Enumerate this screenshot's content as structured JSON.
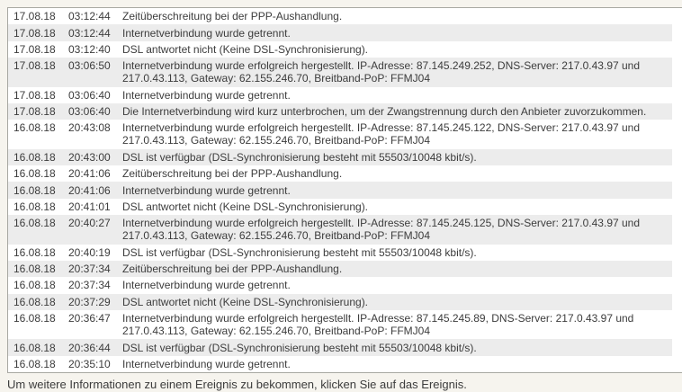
{
  "page": {
    "footer_note": "Um weitere Informationen zu einem Ereignis zu bekommen, klicken Sie auf das Ereignis."
  },
  "theme": {
    "page_background": "#f6f4ee",
    "stripe_color": "#ececec",
    "border_color": "#a8a8a2",
    "text_color": "#3c3c3c",
    "row_background": "#ffffff"
  },
  "log": {
    "rows": [
      {
        "date": "17.08.18",
        "time": "03:12:44",
        "lines": [
          "Zeitüberschreitung bei der PPP-Aushandlung."
        ]
      },
      {
        "date": "17.08.18",
        "time": "03:12:44",
        "lines": [
          "Internetverbindung wurde getrennt."
        ]
      },
      {
        "date": "17.08.18",
        "time": "03:12:40",
        "lines": [
          "DSL antwortet nicht (Keine DSL-Synchronisierung)."
        ]
      },
      {
        "date": "17.08.18",
        "time": "03:06:50",
        "lines": [
          "Internetverbindung wurde erfolgreich hergestellt. IP-Adresse: 87.145.249.252, DNS-Server: 217.0.43.97 und",
          "217.0.43.113, Gateway: 62.155.246.70, Breitband-PoP: FFMJ04"
        ]
      },
      {
        "date": "17.08.18",
        "time": "03:06:40",
        "lines": [
          "Internetverbindung wurde getrennt."
        ]
      },
      {
        "date": "17.08.18",
        "time": "03:06:40",
        "lines": [
          "Die Internetverbindung wird kurz unterbrochen, um der Zwangstrennung durch den Anbieter zuvorzukommen."
        ]
      },
      {
        "date": "16.08.18",
        "time": "20:43:08",
        "lines": [
          "Internetverbindung wurde erfolgreich hergestellt. IP-Adresse: 87.145.245.122, DNS-Server: 217.0.43.97 und",
          "217.0.43.113, Gateway: 62.155.246.70, Breitband-PoP: FFMJ04"
        ]
      },
      {
        "date": "16.08.18",
        "time": "20:43:00",
        "lines": [
          "DSL ist verfügbar (DSL-Synchronisierung besteht mit 55503/10048 kbit/s)."
        ]
      },
      {
        "date": "16.08.18",
        "time": "20:41:06",
        "lines": [
          "Zeitüberschreitung bei der PPP-Aushandlung."
        ]
      },
      {
        "date": "16.08.18",
        "time": "20:41:06",
        "lines": [
          "Internetverbindung wurde getrennt."
        ]
      },
      {
        "date": "16.08.18",
        "time": "20:41:01",
        "lines": [
          "DSL antwortet nicht (Keine DSL-Synchronisierung)."
        ]
      },
      {
        "date": "16.08.18",
        "time": "20:40:27",
        "lines": [
          "Internetverbindung wurde erfolgreich hergestellt. IP-Adresse: 87.145.245.125, DNS-Server: 217.0.43.97 und",
          "217.0.43.113, Gateway: 62.155.246.70, Breitband-PoP: FFMJ04"
        ]
      },
      {
        "date": "16.08.18",
        "time": "20:40:19",
        "lines": [
          "DSL ist verfügbar (DSL-Synchronisierung besteht mit 55503/10048 kbit/s)."
        ]
      },
      {
        "date": "16.08.18",
        "time": "20:37:34",
        "lines": [
          "Zeitüberschreitung bei der PPP-Aushandlung."
        ]
      },
      {
        "date": "16.08.18",
        "time": "20:37:34",
        "lines": [
          "Internetverbindung wurde getrennt."
        ]
      },
      {
        "date": "16.08.18",
        "time": "20:37:29",
        "lines": [
          "DSL antwortet nicht (Keine DSL-Synchronisierung)."
        ]
      },
      {
        "date": "16.08.18",
        "time": "20:36:47",
        "lines": [
          "Internetverbindung wurde erfolgreich hergestellt. IP-Adresse: 87.145.245.89, DNS-Server: 217.0.43.97 und",
          "217.0.43.113, Gateway: 62.155.246.70, Breitband-PoP: FFMJ04"
        ]
      },
      {
        "date": "16.08.18",
        "time": "20:36:44",
        "lines": [
          "DSL ist verfügbar (DSL-Synchronisierung besteht mit 55503/10048 kbit/s)."
        ]
      },
      {
        "date": "16.08.18",
        "time": "20:35:10",
        "lines": [
          "Internetverbindung wurde getrennt."
        ]
      }
    ]
  }
}
